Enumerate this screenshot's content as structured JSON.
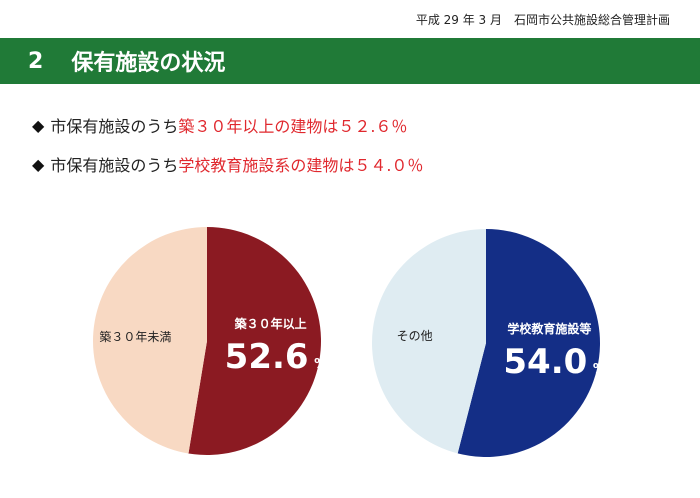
{
  "header": {
    "doc_title": "平成 29 年 3 月　石岡市公共施設総合管理計画"
  },
  "section": {
    "number": "2",
    "title": "保有施設の状況"
  },
  "bullets": [
    {
      "symbol": "◆",
      "prefix": "市保有施設のうち",
      "highlight": "築３０年以上の建物は５２.６％"
    },
    {
      "symbol": "◆",
      "prefix": "市保有施設のうち",
      "highlight": "学校教育施設系の建物は５４.０％"
    }
  ],
  "colors": {
    "title_bar": "#207a37",
    "highlight_text": "#e0282e"
  },
  "chart_data": [
    {
      "type": "pie",
      "slices": [
        {
          "label": "築３０年以上",
          "value": 52.6,
          "value_text": "52.6",
          "unit": "%",
          "color": "#8b1a22"
        },
        {
          "label": "築３０年未満",
          "value": 47.4,
          "color": "#f8d9c3"
        }
      ]
    },
    {
      "type": "pie",
      "slices": [
        {
          "label": "学校教育施設等",
          "value": 54.0,
          "value_text": "54.0",
          "unit": "%",
          "color": "#142e86"
        },
        {
          "label": "その他",
          "value": 46.0,
          "color": "#dfecf2"
        }
      ]
    }
  ]
}
